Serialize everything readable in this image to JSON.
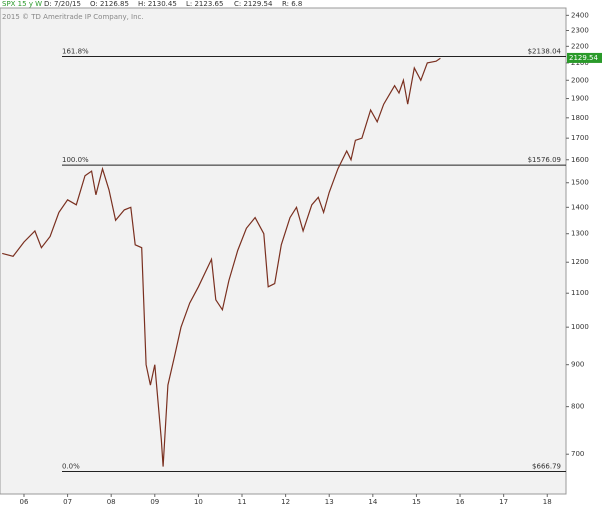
{
  "chart_data": {
    "type": "line",
    "header": {
      "symbol": "SPX 15 y W",
      "date": "D: 7/20/15",
      "open": "O: 2126.85",
      "high": "H: 2130.45",
      "low": "L: 2123.65",
      "close": "C: 2129.54",
      "range": "R: 6.8"
    },
    "copyright": "2015 © TD Ameritrade IP Company, Inc.",
    "last_price": 2129.54,
    "log_scale": true,
    "x": [
      2005.5,
      2005.75,
      2006.0,
      2006.25,
      2006.4,
      2006.6,
      2006.8,
      2007.0,
      2007.2,
      2007.4,
      2007.55,
      2007.65,
      2007.8,
      2007.95,
      2008.1,
      2008.3,
      2008.45,
      2008.55,
      2008.7,
      2008.8,
      2008.9,
      2009.0,
      2009.15,
      2009.19,
      2009.3,
      2009.45,
      2009.6,
      2009.8,
      2010.0,
      2010.3,
      2010.4,
      2010.55,
      2010.7,
      2010.9,
      2011.1,
      2011.3,
      2011.5,
      2011.6,
      2011.75,
      2011.9,
      2012.1,
      2012.25,
      2012.4,
      2012.6,
      2012.75,
      2012.87,
      2013.0,
      2013.2,
      2013.4,
      2013.5,
      2013.6,
      2013.75,
      2013.95,
      2014.1,
      2014.25,
      2014.5,
      2014.6,
      2014.7,
      2014.8,
      2014.95,
      2015.1,
      2015.25,
      2015.45,
      2015.55
    ],
    "series": [
      {
        "name": "SPX",
        "color": "#7a3020",
        "values": [
          1230,
          1220,
          1270,
          1310,
          1250,
          1290,
          1380,
          1430,
          1410,
          1530,
          1550,
          1450,
          1560,
          1470,
          1350,
          1390,
          1400,
          1260,
          1250,
          900,
          850,
          900,
          730,
          676,
          850,
          920,
          1000,
          1070,
          1120,
          1210,
          1080,
          1050,
          1140,
          1240,
          1320,
          1360,
          1300,
          1120,
          1130,
          1260,
          1360,
          1400,
          1310,
          1410,
          1440,
          1380,
          1460,
          1560,
          1640,
          1600,
          1690,
          1700,
          1840,
          1780,
          1870,
          1970,
          1930,
          2000,
          1870,
          2070,
          2000,
          2100,
          2110,
          2128
        ]
      }
    ],
    "fib_levels": [
      {
        "label": "161.8%",
        "value": 2138.04,
        "value_label": "$2138.04"
      },
      {
        "label": "100.0%",
        "value": 1576.09,
        "value_label": "$1576.09"
      },
      {
        "label": "0.0%",
        "value": 666.79,
        "value_label": "$666.79"
      }
    ],
    "xlim": [
      2005.45,
      2018.43
    ],
    "ylim": [
      626,
      2450
    ],
    "xticks": [
      {
        "value": 2006,
        "label": "06"
      },
      {
        "value": 2007,
        "label": "07"
      },
      {
        "value": 2008,
        "label": "08"
      },
      {
        "value": 2009,
        "label": "09"
      },
      {
        "value": 2010,
        "label": "10"
      },
      {
        "value": 2011,
        "label": "11"
      },
      {
        "value": 2012,
        "label": "12"
      },
      {
        "value": 2013,
        "label": "13"
      },
      {
        "value": 2014,
        "label": "14"
      },
      {
        "value": 2015,
        "label": "15"
      },
      {
        "value": 2016,
        "label": "16"
      },
      {
        "value": 2017,
        "label": "17"
      },
      {
        "value": 2018,
        "label": "18"
      }
    ],
    "yticks": [
      2400,
      2300,
      2200,
      2100,
      2000,
      1900,
      1800,
      1700,
      1600,
      1500,
      1400,
      1300,
      1200,
      1100,
      1000,
      900,
      800,
      700
    ]
  }
}
